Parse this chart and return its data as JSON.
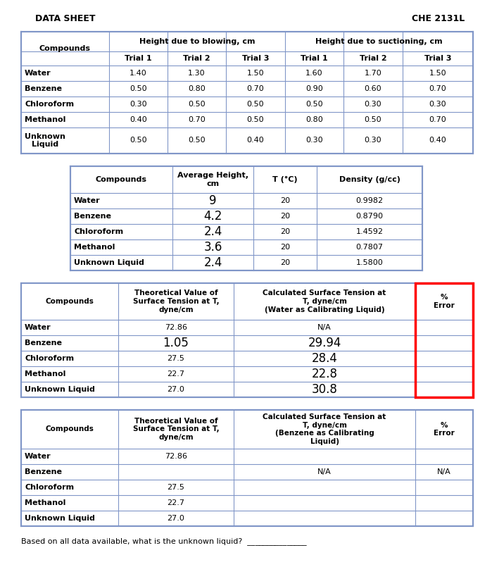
{
  "title_left": "DATA SHEET",
  "title_right": "CHE 2131L",
  "bg_color": "#f5f5f5",
  "line_color": "#8096c8",
  "table1": {
    "compounds": [
      "Water",
      "Benzene",
      "Chloroform",
      "Methanol",
      "Unknown\nLiquid"
    ],
    "blowing": [
      [
        "1.40",
        "1.30",
        "1.50"
      ],
      [
        "0.50",
        "0.80",
        "0.70"
      ],
      [
        "0.30",
        "0.50",
        "0.50"
      ],
      [
        "0.40",
        "0.70",
        "0.50"
      ],
      [
        "0.50",
        "0.50",
        "0.40"
      ]
    ],
    "suctioning": [
      [
        "1.60",
        "1.70",
        "1.50"
      ],
      [
        "0.90",
        "0.60",
        "0.70"
      ],
      [
        "0.50",
        "0.30",
        "0.30"
      ],
      [
        "0.80",
        "0.50",
        "0.70"
      ],
      [
        "0.30",
        "0.30",
        "0.40"
      ]
    ]
  },
  "table2": {
    "compounds": [
      "Water",
      "Benzene",
      "Chloroform",
      "Methanol",
      "Unknown Liquid"
    ],
    "avg_height": [
      "9",
      "4.2",
      "2.4",
      "3.6",
      "2.4"
    ],
    "avg_large": [
      true,
      true,
      true,
      true,
      true
    ],
    "temp": [
      "20",
      "20",
      "20",
      "20",
      "20"
    ],
    "density": [
      "0.9982",
      "0.8790",
      "1.4592",
      "0.7807",
      "1.5800"
    ]
  },
  "table3": {
    "compounds": [
      "Water",
      "Benzene",
      "Chloroform",
      "Methanol",
      "Unknown Liquid"
    ],
    "theoretical": [
      "72.86",
      "1.05",
      "27.5",
      "22.7",
      "27.0"
    ],
    "theo_large": [
      false,
      true,
      false,
      false,
      false
    ],
    "calculated": [
      "N/A",
      "29.94",
      "28.4",
      "22.8",
      "30.8"
    ],
    "calc_large": [
      false,
      true,
      true,
      true,
      true
    ],
    "error": [
      "",
      "",
      "",
      "",
      ""
    ]
  },
  "table4": {
    "compounds": [
      "Water",
      "Benzene",
      "Chloroform",
      "Methanol",
      "Unknown Liquid"
    ],
    "theoretical": [
      "72.86",
      "",
      "27.5",
      "22.7",
      "27.0"
    ],
    "calculated": [
      "",
      "N/A",
      "",
      "",
      ""
    ],
    "error": [
      "",
      "N/A",
      "",
      "",
      ""
    ]
  },
  "footer": "Based on all data available, what is the unknown liquid?  _______________"
}
